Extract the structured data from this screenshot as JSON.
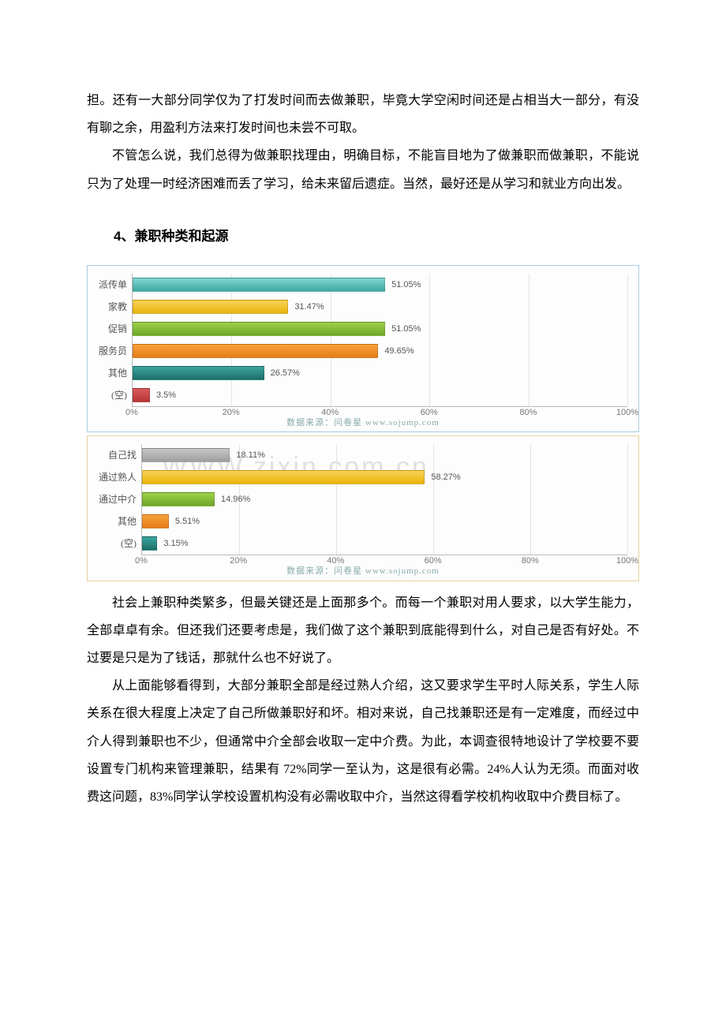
{
  "para1": "担。还有一大部分同学仅为了打发时间而去做兼职，毕竟大学空闲时间还是占相当大一部分，有没有聊之余，用盈利方法来打发时间也未尝不可取。",
  "para2": "不管怎么说，我们总得为做兼职找理由，明确目标，不能盲目地为了做兼职而做兼职，不能说只为了处理一时经济困难而丢了学习，给未来留后遗症。当然，最好还是从学习和就业方向出发。",
  "heading": "4、兼职种类和起源",
  "chart1": {
    "type": "bar",
    "border_color": "#a8cde0",
    "categories": [
      "派传单",
      "家教",
      "促销",
      "服务员",
      "其他",
      "(空)"
    ],
    "values": [
      51.05,
      31.47,
      51.05,
      49.65,
      26.57,
      3.5
    ],
    "value_labels": [
      "51.05%",
      "31.47%",
      "51.05%",
      "49.65%",
      "26.57%",
      "3.5%"
    ],
    "bar_colors_start": [
      "#7fd6d0",
      "#f6d35a",
      "#9ed14a",
      "#f7a23c",
      "#3aa6a0",
      "#d85a5a"
    ],
    "bar_colors_end": [
      "#3ea8a3",
      "#eab308",
      "#6fa62a",
      "#e77c1a",
      "#1f6d68",
      "#b63636"
    ],
    "xlim": 100,
    "xticks": [
      0,
      20,
      40,
      60,
      80,
      100
    ],
    "xtick_labels": [
      "0%",
      "20%",
      "40%",
      "60%",
      "80%",
      "100%"
    ],
    "source": "数据来源：问卷星  www.sojump.com"
  },
  "chart2": {
    "type": "bar",
    "border_color": "#e6cfa0",
    "categories": [
      "自己找",
      "通过熟人",
      "通过中介",
      "其他",
      "(空)"
    ],
    "values": [
      18.11,
      58.27,
      14.96,
      5.51,
      3.15
    ],
    "value_labels": [
      "18.11%",
      "58.27%",
      "14.96%",
      "5.51%",
      "3.15%"
    ],
    "bar_colors_start": [
      "#c7c7c7",
      "#f6d35a",
      "#9ed14a",
      "#f7a23c",
      "#3aa6a0"
    ],
    "bar_colors_end": [
      "#9e9e9e",
      "#eab308",
      "#6fa62a",
      "#e77c1a",
      "#1f6d68"
    ],
    "xlim": 100,
    "xticks": [
      0,
      20,
      40,
      60,
      80,
      100
    ],
    "xtick_labels": [
      "0%",
      "20%",
      "40%",
      "60%",
      "80%",
      "100%"
    ],
    "source": "数据来源：问卷星  www.sojump.com",
    "watermark": "WWW.zixin.com.cn"
  },
  "para3": "社会上兼职种类繁多，但最关键还是上面那多个。而每一个兼职对用人要求，以大学生能力，全部卓卓有余。但还我们还要考虑是，我们做了这个兼职到底能得到什么，对自己是否有好处。不过要是只是为了钱话，那就什么也不好说了。",
  "para4": "从上面能够看得到，大部分兼职全部是经过熟人介绍，这又要求学生平时人际关系，学生人际关系在很大程度上决定了自己所做兼职好和坏。相对来说，自己找兼职还是有一定难度，而经过中介人得到兼职也不少，但通常中介全部会收取一定中介费。为此，本调查很特地设计了学校要不要设置专门机构来管理兼职，结果有 72%同学一至认为，这是很有必需。24%人认为无须。而面对收费这问题，83%同学认学校设置机构没有必需收取中介，当然这得看学校机构收取中介费目标了。"
}
